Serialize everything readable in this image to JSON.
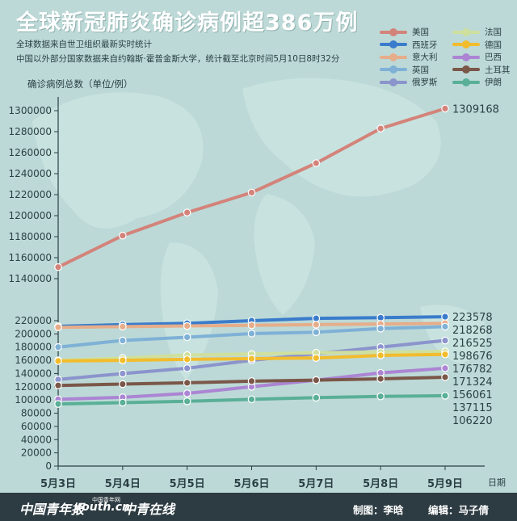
{
  "title": "全球新冠肺炎确诊病例超386万例",
  "subtitle_lines": [
    "全球数据来自世卫组织最新实时统计",
    "中国以外部分国家数据来自约翰斯·霍普金斯大学，统计截至北京时间5月10日8时32分"
  ],
  "footer": {
    "logos": [
      "中国青年报",
      "youth.cn",
      "中青在线"
    ],
    "logo_tag": "中国青年网",
    "credit_chart": "制图：李晗",
    "credit_editor": "编辑：马子倩"
  },
  "colors": {
    "background": "#bcd9d7",
    "footer": "#2d3b42"
  },
  "chart_data": {
    "type": "line",
    "ylabel": "确诊病例总数（单位/例）",
    "xlabel": "日期",
    "categories": [
      "5月3日",
      "5月4日",
      "5月5日",
      "5月6日",
      "5月7日",
      "5月8日",
      "5月9日"
    ],
    "axis_break": {
      "lower_range": [
        0,
        220000
      ],
      "upper_range": [
        1140000,
        1300000
      ]
    },
    "y_ticks_lower": [
      0,
      20000,
      40000,
      60000,
      80000,
      100000,
      120000,
      140000,
      160000,
      180000,
      200000,
      220000
    ],
    "y_ticks_upper": [
      1140000,
      1160000,
      1180000,
      1200000,
      1220000,
      1240000,
      1260000,
      1280000,
      1300000
    ],
    "legend_placement": "top-right",
    "series": [
      {
        "name": "美国",
        "color": "#d3837a",
        "values": [
          1151000,
          1181000,
          1203000,
          1222000,
          1250000,
          1283000,
          1302000
        ],
        "end_label": "1309168"
      },
      {
        "name": "西班牙",
        "color": "#3a7ccb",
        "values": [
          211500,
          214000,
          216000,
          220000,
          223500,
          224500,
          226000
        ],
        "end_label": "223578"
      },
      {
        "name": "意大利",
        "color": "#e6ad8a",
        "values": [
          210000,
          211000,
          212000,
          213000,
          214000,
          215000,
          216000
        ],
        "end_label": "218268"
      },
      {
        "name": "英国",
        "color": "#7fb1d6",
        "values": [
          180000,
          190000,
          195000,
          200500,
          202500,
          208000,
          211000
        ],
        "end_label": "216525"
      },
      {
        "name": "俄罗斯",
        "color": "#8b94cc",
        "values": [
          131000,
          140000,
          148000,
          160000,
          170000,
          180000,
          190000
        ],
        "end_label": "198676"
      },
      {
        "name": "法国",
        "color": "#cfe09e",
        "values": [
          160000,
          163500,
          168000,
          169500,
          171500,
          172500,
          173500
        ],
        "end_label": "176782"
      },
      {
        "name": "德国",
        "color": "#f2bc2c",
        "values": [
          159000,
          160000,
          161500,
          162500,
          163500,
          167500,
          169000
        ],
        "end_label": "171324"
      },
      {
        "name": "巴西",
        "color": "#ab85d3",
        "values": [
          101000,
          104000,
          110000,
          120000,
          130000,
          141000,
          148000
        ],
        "end_label": "156061"
      },
      {
        "name": "土耳其",
        "color": "#7a5748",
        "values": [
          122000,
          124000,
          126000,
          128500,
          130000,
          132000,
          134500
        ],
        "end_label": "137115"
      },
      {
        "name": "伊朗",
        "color": "#5aaf97",
        "values": [
          94000,
          96000,
          98000,
          101000,
          103500,
          105500,
          106500
        ],
        "end_label": "106220"
      }
    ]
  }
}
